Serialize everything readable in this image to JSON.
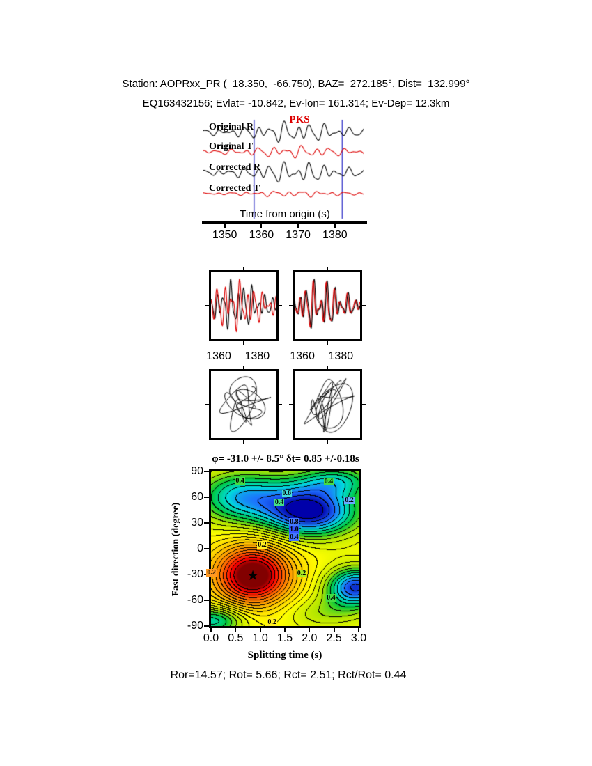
{
  "colors": {
    "trace_red": "#dd0000",
    "window_blue": "#4444cc",
    "accent_black": "#000000"
  },
  "header": {
    "line1": "Station: AOPRxx_PR (  18.350,  -66.750), BAZ=  272.185°, Dist=  132.999°",
    "line2": "EQ163432156; Evlat= -10.842, Ev-lon= 161.314; Ev-Dep= 12.3km"
  },
  "footer": {
    "line": "Ror=14.57; Rot= 5.66; Rct= 2.51; Rct/Rot= 0.44"
  },
  "chart_data": [
    {
      "id": "seismograms",
      "type": "line",
      "phase_label": "PKS",
      "xlabel": "Time from origin (s)",
      "xticks": [
        1350,
        1360,
        1370,
        1380
      ],
      "xlim": [
        1344,
        1388
      ],
      "window": {
        "start": 1358,
        "end": 1382
      },
      "traces": [
        {
          "label": "Original R",
          "color": "#000000",
          "comps": [
            {
              "f": 0.28,
              "a": 9,
              "p": 0.0
            },
            {
              "f": 0.18,
              "a": 5.5,
              "p": 1.1
            },
            {
              "f": 0.45,
              "a": 4,
              "p": 2.3
            }
          ],
          "env": {
            "c": 1369,
            "w": 9,
            "base": 0.25
          }
        },
        {
          "label": "Original T",
          "color": "#dd0000",
          "comps": [
            {
              "f": 0.26,
              "a": 5,
              "p": 1.4
            },
            {
              "f": 0.16,
              "a": 3,
              "p": -0.8
            },
            {
              "f": 0.42,
              "a": 2.5,
              "p": 0.6
            }
          ],
          "env": {
            "c": 1369,
            "w": 10,
            "base": 0.3
          }
        },
        {
          "label": "Corrected R",
          "color": "#000000",
          "comps": [
            {
              "f": 0.28,
              "a": 9,
              "p": 0.4
            },
            {
              "f": 0.18,
              "a": 5.5,
              "p": 0.8
            },
            {
              "f": 0.45,
              "a": 4,
              "p": 2.0
            }
          ],
          "env": {
            "c": 1369,
            "w": 9,
            "base": 0.25
          }
        },
        {
          "label": "Corrected T",
          "color": "#dd0000",
          "comps": [
            {
              "f": 0.26,
              "a": 2.5,
              "p": 0.9
            },
            {
              "f": 0.42,
              "a": 1.5,
              "p": 2.2
            },
            {
              "f": 0.16,
              "a": 1.5,
              "p": 0.2
            }
          ],
          "env": {
            "c": 1369,
            "w": 10,
            "base": 0.3
          }
        }
      ]
    },
    {
      "id": "windowed-overlay",
      "type": "line",
      "xlim": [
        1356,
        1390
      ],
      "panels": [
        {
          "xticks": [
            1360,
            1380
          ],
          "series": [
            {
              "trace": 0,
              "color": "#000000",
              "scale": 1
            },
            {
              "trace": 1,
              "color": "#dd0000",
              "scale": 1
            }
          ]
        },
        {
          "xticks": [
            1360,
            1380
          ],
          "series": [
            {
              "trace": 2,
              "color": "#000000",
              "scale": 1
            },
            {
              "trace": 2,
              "color": "#dd0000",
              "scale": 0.95,
              "tshift": 0.5
            }
          ]
        }
      ]
    },
    {
      "id": "particle-motion",
      "type": "scatter",
      "window": [
        1359,
        1384
      ],
      "panels": [
        {
          "x_trace": 0,
          "y_trace": 1,
          "y_gain": 2.2,
          "mix": 0
        },
        {
          "x_trace": 2,
          "y_trace": 3,
          "y_gain": 2.0,
          "mix": 0.55
        }
      ]
    },
    {
      "id": "splitting-misfit",
      "type": "heatmap",
      "title": "φ= -31.0 +/- 8.5° δt= 0.85 +/-0.18s",
      "xlabel": "Splitting time (s)",
      "ylabel": "Fast direction (degree)",
      "xticks": [
        "0.0",
        "0.5",
        "1.0",
        "1.5",
        "2.0",
        "2.5",
        "3.0"
      ],
      "yticks": [
        90,
        60,
        30,
        0,
        -30,
        -60,
        -90
      ],
      "xlim": [
        0,
        3
      ],
      "ylim": [
        -90,
        90
      ],
      "best": {
        "phi_deg": -31.0,
        "phi_err_deg": 8.5,
        "dt_s": 0.85,
        "dt_err_s": 0.18
      },
      "surface": {
        "base": 0.5,
        "contour_step": 0.045,
        "bumps": [
          {
            "dt": 0.85,
            "phi": -31,
            "sdt": 0.55,
            "sphi": 25,
            "amp": -0.58
          },
          {
            "dt": 2.0,
            "phi": 42,
            "sdt": 0.7,
            "sphi": 20,
            "amp": 0.5
          },
          {
            "dt": 2.95,
            "phi": -45,
            "sdt": 0.42,
            "sphi": 16,
            "amp": 0.45
          },
          {
            "dt": 0.5,
            "phi": 58,
            "sdt": 0.6,
            "sphi": 22,
            "amp": 0.26
          },
          {
            "dt": 2.6,
            "phi": 80,
            "sdt": 0.55,
            "sphi": 13,
            "amp": 0.22
          },
          {
            "dt": 0.05,
            "phi": -84,
            "sdt": 0.45,
            "sphi": 12,
            "amp": 0.3
          },
          {
            "dt": 1.4,
            "phi": 70,
            "sdt": 0.9,
            "sphi": 18,
            "amp": 0.12
          },
          {
            "dt": 2.3,
            "phi": -75,
            "sdt": 0.6,
            "sphi": 14,
            "amp": 0.12
          }
        ]
      },
      "colormap": [
        [
          0.0,
          [
            130,
            0,
            0
          ]
        ],
        [
          0.08,
          [
            255,
            0,
            0
          ]
        ],
        [
          0.22,
          [
            255,
            120,
            0
          ]
        ],
        [
          0.38,
          [
            255,
            210,
            0
          ]
        ],
        [
          0.5,
          [
            255,
            255,
            0
          ]
        ],
        [
          0.62,
          [
            180,
            230,
            0
          ]
        ],
        [
          0.72,
          [
            0,
            200,
            60
          ]
        ],
        [
          0.82,
          [
            0,
            220,
            220
          ]
        ],
        [
          0.9,
          [
            30,
            110,
            255
          ]
        ],
        [
          1.0,
          [
            0,
            0,
            170
          ]
        ]
      ],
      "labels": [
        {
          "text": "0.4",
          "dt": 0.6,
          "phi": 78,
          "bg": "#44dd44"
        },
        {
          "text": "0.6",
          "dt": 1.55,
          "phi": 63,
          "bg": "#44dddd"
        },
        {
          "text": "0.4",
          "dt": 2.4,
          "phi": 77,
          "bg": "#44dd44"
        },
        {
          "text": "0.2",
          "dt": 2.82,
          "phi": 55,
          "bg": "#66aaff"
        },
        {
          "text": "0.4",
          "dt": 1.4,
          "phi": 53,
          "bg": "#44dd88"
        },
        {
          "text": "0.8",
          "dt": 1.7,
          "phi": 30,
          "bg": "#4477ff"
        },
        {
          "text": "1.0",
          "dt": 1.7,
          "phi": 21,
          "bg": "#3355ff"
        },
        {
          "text": "0.4",
          "dt": 1.7,
          "phi": 12,
          "bg": "#4477ff"
        },
        {
          "text": "0.2",
          "dt": 1.05,
          "phi": 3,
          "bg": "#ffee22"
        },
        {
          "text": "0.2",
          "dt": 0.02,
          "phi": -29,
          "bg": "#ff9922"
        },
        {
          "text": "0.2",
          "dt": 1.85,
          "phi": -30,
          "bg": "#aaee22"
        },
        {
          "text": "0.4",
          "dt": 2.45,
          "phi": -58,
          "bg": "#44dd44"
        },
        {
          "text": "0.2",
          "dt": 1.25,
          "phi": -87,
          "bg": "#ffee22"
        }
      ]
    }
  ]
}
